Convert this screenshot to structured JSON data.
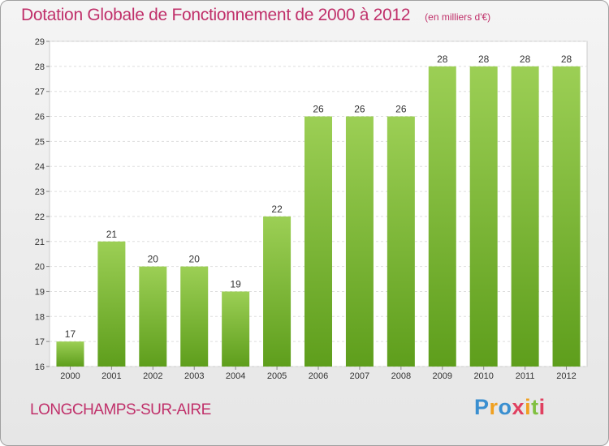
{
  "header": {
    "title": "Dotation Globale de Fonctionnement de 2000 à 2012",
    "unit": "(en milliers d'€)"
  },
  "footer": {
    "commune": "LONGCHAMPS-SUR-AIRE",
    "logo_letters": [
      {
        "char": "P",
        "color": "#3a8fd0"
      },
      {
        "char": "r",
        "color": "#f0a020"
      },
      {
        "char": "o",
        "color": "#3a8fd0"
      },
      {
        "char": "x",
        "color": "#e04060"
      },
      {
        "char": "i",
        "color": "#f0a020"
      },
      {
        "char": "t",
        "color": "#80c040"
      },
      {
        "char": "i",
        "color": "#e04060"
      }
    ]
  },
  "chart_data": {
    "type": "bar",
    "categories": [
      "2000",
      "2001",
      "2002",
      "2003",
      "2004",
      "2005",
      "2006",
      "2007",
      "2008",
      "2009",
      "2010",
      "2011",
      "2012"
    ],
    "values": [
      17,
      21,
      20,
      20,
      19,
      22,
      26,
      26,
      26,
      28,
      28,
      28,
      28
    ],
    "ylim": [
      16,
      29
    ],
    "yticks": [
      16,
      17,
      18,
      19,
      20,
      21,
      22,
      23,
      24,
      25,
      26,
      27,
      28,
      29
    ],
    "grid": true,
    "bar_color": "#7ab83a"
  }
}
